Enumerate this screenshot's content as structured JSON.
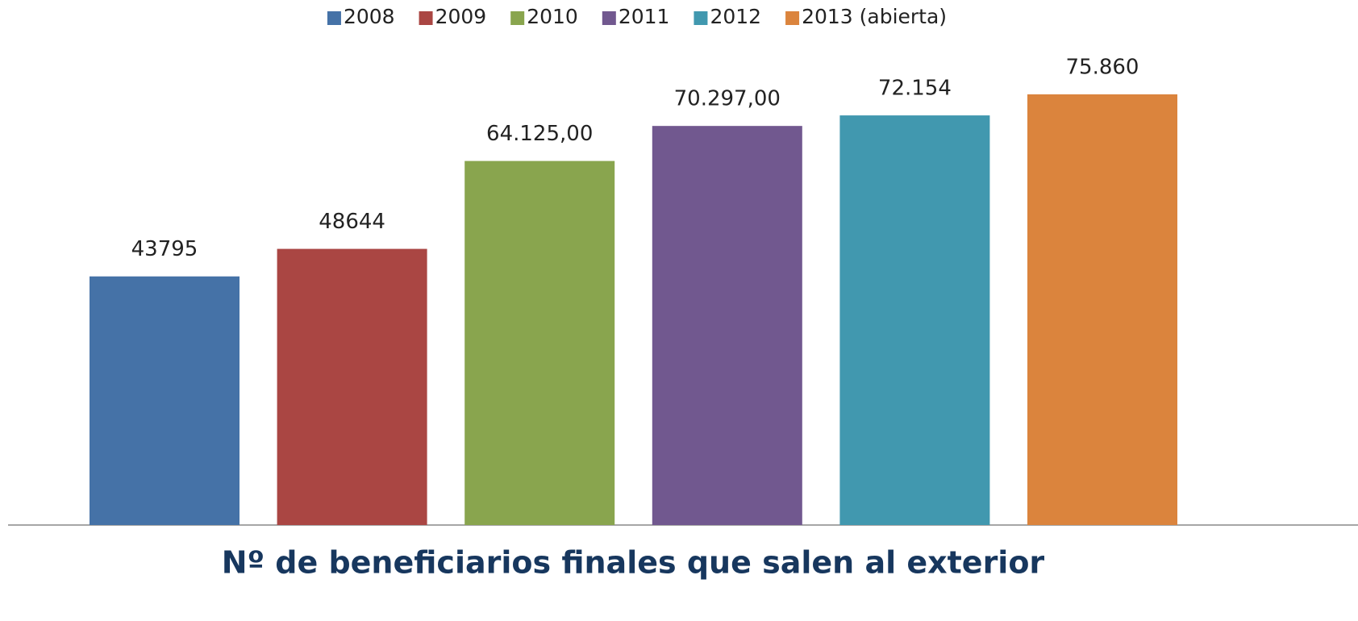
{
  "chart_data": {
    "type": "bar",
    "categories": [
      "Nº de beneficiarios finales que salen al exterior"
    ],
    "series": [
      {
        "name": "2008",
        "color": "#4572a7",
        "values": [
          43795
        ]
      },
      {
        "name": "2009",
        "color": "#aa4643",
        "values": [
          48644
        ]
      },
      {
        "name": "2010",
        "color": "#89a54e",
        "values": [
          64125
        ],
        "value_labels": [
          "64.125,00"
        ]
      },
      {
        "name": "2011",
        "color": "#71588f",
        "values": [
          70297
        ],
        "value_labels": [
          "70.297,00"
        ]
      },
      {
        "name": "2012",
        "color": "#4198af",
        "values": [
          72154
        ],
        "value_labels": [
          "72.154"
        ]
      },
      {
        "name": "2013 (abierta)",
        "color": "#db843d",
        "values": [
          75860
        ],
        "value_labels": [
          "75.860"
        ]
      }
    ]
  }
}
